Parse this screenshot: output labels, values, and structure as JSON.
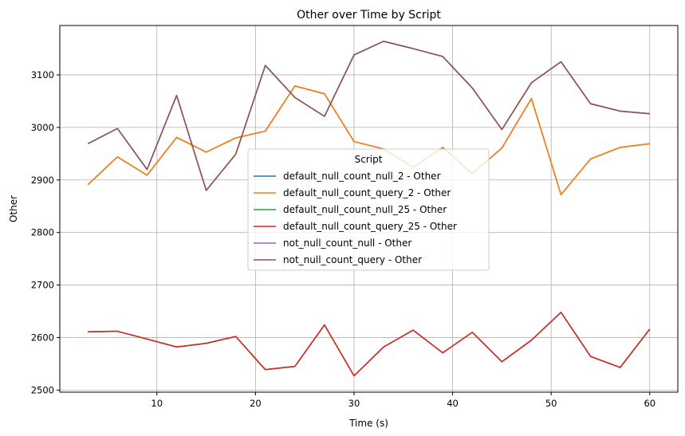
{
  "chart_data": {
    "type": "line",
    "title": "Other over Time by Script",
    "xlabel": "Time (s)",
    "ylabel": "Other",
    "xlim": [
      0.15,
      62.85
    ],
    "ylim": [
      2496,
      3194
    ],
    "xticks": [
      10,
      20,
      30,
      40,
      50,
      60
    ],
    "yticks": [
      2500,
      2600,
      2700,
      2800,
      2900,
      3000,
      3100
    ],
    "grid": true,
    "legend": {
      "title": "Script",
      "position": "center"
    },
    "x": [
      3,
      6,
      9,
      12,
      15,
      18,
      21,
      24,
      27,
      30,
      33,
      36,
      39,
      42,
      45,
      48,
      51,
      54,
      57,
      60
    ],
    "series": [
      {
        "name": "default_null_count_null_2 - Other",
        "color": "#1f77b4",
        "values": [
          2891,
          2944,
          2909,
          2981,
          2953,
          2980,
          2993,
          3079,
          3064,
          2973,
          2959,
          2924,
          2962,
          2912,
          2961,
          3055,
          2872,
          2940,
          2962,
          2969
        ]
      },
      {
        "name": "default_null_count_query_2 - Other",
        "color": "#ff7f0e",
        "values": [
          2891,
          2944,
          2909,
          2981,
          2953,
          2980,
          2993,
          3079,
          3064,
          2973,
          2959,
          2924,
          2962,
          2912,
          2961,
          3055,
          2872,
          2940,
          2962,
          2969
        ]
      },
      {
        "name": "default_null_count_null_25 - Other",
        "color": "#2ca02c",
        "values": [
          2611,
          2612,
          2597,
          2582,
          2589,
          2602,
          2539,
          2545,
          2624,
          2527,
          2582,
          2614,
          2571,
          2610,
          2554,
          2595,
          2648,
          2564,
          2543,
          2616
        ]
      },
      {
        "name": "default_null_count_query_25 - Other",
        "color": "#d62728",
        "values": [
          2611,
          2612,
          2597,
          2582,
          2589,
          2602,
          2539,
          2545,
          2624,
          2527,
          2582,
          2614,
          2571,
          2610,
          2554,
          2595,
          2648,
          2564,
          2543,
          2616
        ]
      },
      {
        "name": "not_null_count_null - Other",
        "color": "#9467bd",
        "values": [
          2969,
          2998,
          2920,
          3061,
          2880,
          2949,
          3118,
          3057,
          3021,
          3138,
          3164,
          3150,
          3135,
          3075,
          2996,
          3085,
          3125,
          3045,
          3031,
          3026
        ]
      },
      {
        "name": "not_null_count_query - Other",
        "color": "#8c564b",
        "values": [
          2969,
          2998,
          2920,
          3061,
          2880,
          2949,
          3118,
          3057,
          3021,
          3138,
          3164,
          3150,
          3135,
          3075,
          2996,
          3085,
          3125,
          3045,
          3031,
          3026
        ]
      }
    ]
  }
}
